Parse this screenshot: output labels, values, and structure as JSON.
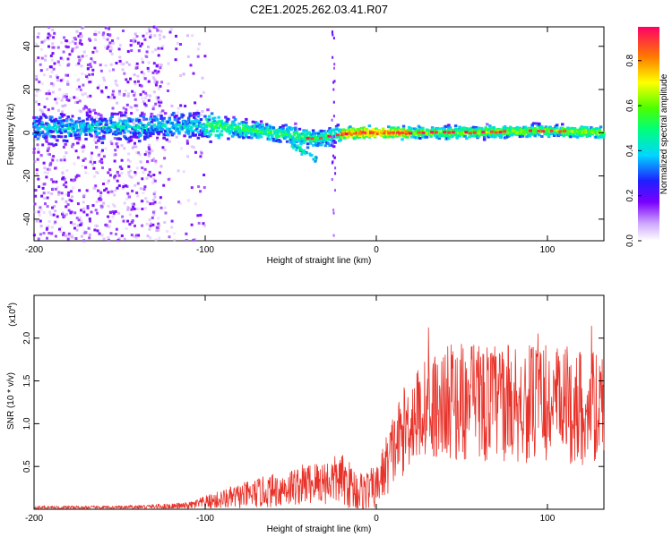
{
  "title": "C2E1.2025.262.03.41.R07",
  "chart_data": [
    {
      "type": "heatmap",
      "name": "spectrogram",
      "xlabel": "Height of straight line (km)",
      "ylabel": "Frequency (Hz)",
      "xlim": [
        -200,
        133
      ],
      "ylim": [
        -50,
        49
      ],
      "xticks": [
        -200,
        -100,
        0,
        100
      ],
      "xtick_labels": [
        "-200",
        "-100",
        "0",
        "100"
      ],
      "yticks": [
        -40,
        -20,
        0,
        20,
        40
      ],
      "ytick_labels": [
        "-40",
        "-20",
        "0",
        "20",
        "40"
      ],
      "ridge": {
        "description_points_x": [
          -200,
          -120,
          -90,
          -50,
          -35,
          -25,
          -10,
          0,
          50,
          100,
          133
        ],
        "frequency_hz": [
          2,
          3,
          3,
          -1,
          -3,
          -1,
          0,
          0,
          0,
          1,
          0
        ]
      },
      "colorbar": {
        "label": "Normalized spectral amplitude",
        "range": [
          0,
          0.95
        ],
        "ticks": [
          0.0,
          0.2,
          0.4,
          0.6,
          0.8
        ],
        "tick_labels": [
          "0.0",
          "0.2",
          "0.4",
          "0.6",
          "0.8"
        ]
      }
    },
    {
      "type": "line",
      "name": "snr",
      "xlabel": "Height of straight line (km)",
      "ylabel": "SNR (10 * v/v)",
      "exponent_label": "(x10",
      "exponent_power": "4",
      "exponent_close": ")",
      "xlim": [
        -200,
        133
      ],
      "ylim": [
        0,
        2.5
      ],
      "xticks": [
        -200,
        -100,
        0,
        100
      ],
      "xtick_labels": [
        "-200",
        "-100",
        "0",
        "100"
      ],
      "yticks": [
        0.5,
        1.0,
        1.5,
        2.0
      ],
      "ytick_labels": [
        "0.5",
        "1.0",
        "1.5",
        "2.0"
      ],
      "color": "#e8332a",
      "envelope": {
        "x": [
          -200,
          -150,
          -110,
          -100,
          -80,
          -60,
          -40,
          -20,
          -10,
          0,
          10,
          20,
          30,
          40,
          50,
          60,
          80,
          100,
          120,
          133
        ],
        "mean": [
          0.02,
          0.02,
          0.04,
          0.08,
          0.15,
          0.22,
          0.3,
          0.35,
          0.2,
          0.25,
          0.7,
          1.05,
          1.2,
          1.25,
          1.25,
          1.25,
          1.25,
          1.22,
          1.2,
          1.15
        ],
        "spread": [
          0.02,
          0.02,
          0.04,
          0.08,
          0.15,
          0.2,
          0.25,
          0.3,
          0.25,
          0.25,
          0.45,
          0.55,
          0.6,
          0.65,
          0.7,
          0.7,
          0.7,
          0.7,
          0.7,
          0.65
        ]
      }
    }
  ]
}
